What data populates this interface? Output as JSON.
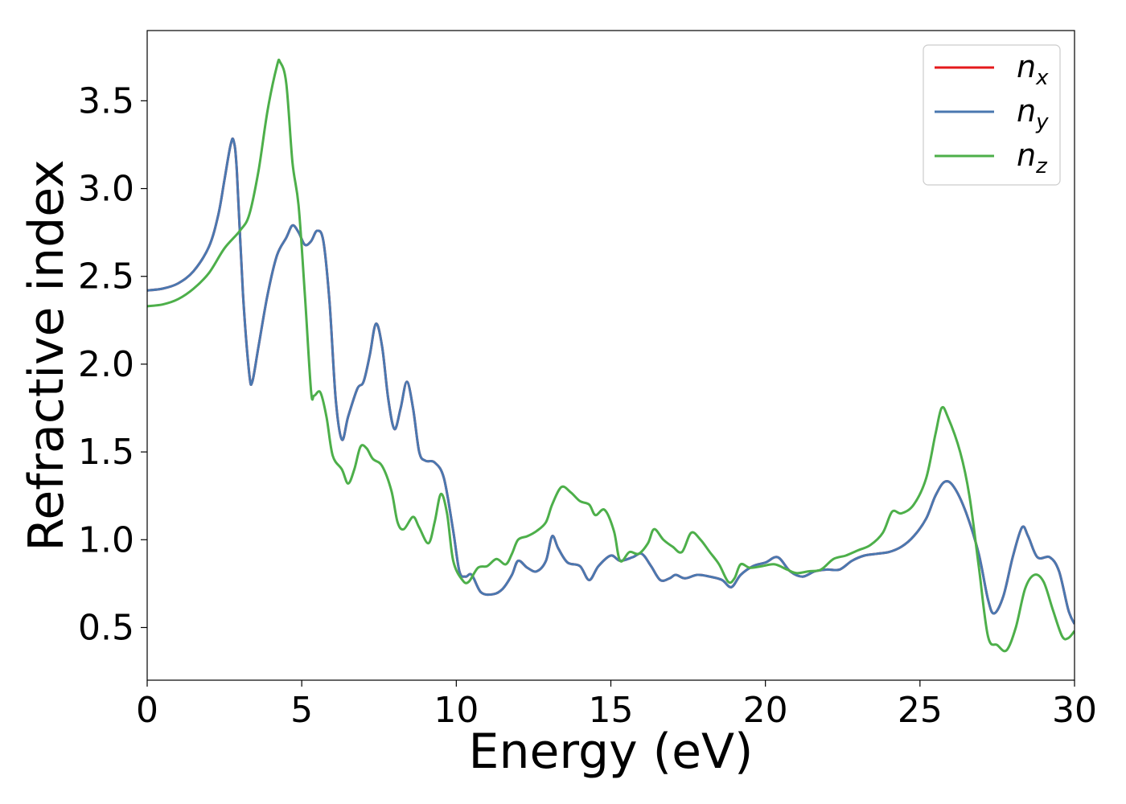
{
  "chart_data": {
    "type": "line",
    "xlabel": "Energy (eV)",
    "ylabel": "Refractive index",
    "xlim": [
      0,
      30
    ],
    "ylim": [
      0.2,
      3.9
    ],
    "xticks": [
      0,
      5,
      10,
      15,
      20,
      25,
      30
    ],
    "xtick_labels": [
      "0",
      "5",
      "10",
      "15",
      "20",
      "25",
      "30"
    ],
    "yticks": [
      0.5,
      1.0,
      1.5,
      2.0,
      2.5,
      3.0,
      3.5
    ],
    "ytick_labels": [
      "0.5",
      "1.0",
      "1.5",
      "2.0",
      "2.5",
      "3.0",
      "3.5"
    ],
    "grid": false,
    "legend_position": "top-right",
    "series": [
      {
        "name": "n",
        "subscript": "x",
        "color": "#e41a1c",
        "points": [
          [
            0,
            2.42
          ],
          [
            0.5,
            2.43
          ],
          [
            1,
            2.46
          ],
          [
            1.5,
            2.53
          ],
          [
            2,
            2.67
          ],
          [
            2.3,
            2.85
          ],
          [
            2.5,
            3.05
          ],
          [
            2.7,
            3.25
          ],
          [
            2.8,
            3.27
          ],
          [
            2.9,
            3.1
          ],
          [
            3.1,
            2.4
          ],
          [
            3.3,
            1.95
          ],
          [
            3.4,
            1.9
          ],
          [
            3.6,
            2.1
          ],
          [
            3.9,
            2.4
          ],
          [
            4.2,
            2.62
          ],
          [
            4.5,
            2.72
          ],
          [
            4.7,
            2.79
          ],
          [
            4.9,
            2.75
          ],
          [
            5.1,
            2.68
          ],
          [
            5.3,
            2.7
          ],
          [
            5.5,
            2.76
          ],
          [
            5.7,
            2.7
          ],
          [
            5.9,
            2.35
          ],
          [
            6.1,
            1.8
          ],
          [
            6.3,
            1.57
          ],
          [
            6.5,
            1.7
          ],
          [
            6.8,
            1.86
          ],
          [
            7,
            1.9
          ],
          [
            7.2,
            2.05
          ],
          [
            7.4,
            2.23
          ],
          [
            7.6,
            2.1
          ],
          [
            7.8,
            1.8
          ],
          [
            8.0,
            1.63
          ],
          [
            8.2,
            1.75
          ],
          [
            8.4,
            1.9
          ],
          [
            8.6,
            1.75
          ],
          [
            8.8,
            1.5
          ],
          [
            9.0,
            1.45
          ],
          [
            9.3,
            1.44
          ],
          [
            9.6,
            1.35
          ],
          [
            9.9,
            1.05
          ],
          [
            10.1,
            0.82
          ],
          [
            10.3,
            0.79
          ],
          [
            10.5,
            0.8
          ],
          [
            10.8,
            0.7
          ],
          [
            11.2,
            0.69
          ],
          [
            11.5,
            0.72
          ],
          [
            11.8,
            0.8
          ],
          [
            12,
            0.88
          ],
          [
            12.3,
            0.84
          ],
          [
            12.6,
            0.82
          ],
          [
            12.9,
            0.88
          ],
          [
            13.1,
            1.02
          ],
          [
            13.3,
            0.95
          ],
          [
            13.6,
            0.87
          ],
          [
            14,
            0.85
          ],
          [
            14.3,
            0.77
          ],
          [
            14.6,
            0.85
          ],
          [
            15,
            0.91
          ],
          [
            15.3,
            0.88
          ],
          [
            15.7,
            0.9
          ],
          [
            16,
            0.92
          ],
          [
            16.3,
            0.85
          ],
          [
            16.6,
            0.77
          ],
          [
            16.9,
            0.78
          ],
          [
            17.1,
            0.8
          ],
          [
            17.4,
            0.78
          ],
          [
            17.8,
            0.8
          ],
          [
            18.2,
            0.79
          ],
          [
            18.6,
            0.77
          ],
          [
            18.9,
            0.73
          ],
          [
            19.2,
            0.8
          ],
          [
            19.6,
            0.85
          ],
          [
            20,
            0.87
          ],
          [
            20.4,
            0.9
          ],
          [
            20.8,
            0.82
          ],
          [
            21.2,
            0.79
          ],
          [
            21.6,
            0.82
          ],
          [
            22,
            0.83
          ],
          [
            22.4,
            0.83
          ],
          [
            22.8,
            0.88
          ],
          [
            23.2,
            0.91
          ],
          [
            23.6,
            0.92
          ],
          [
            24,
            0.93
          ],
          [
            24.4,
            0.96
          ],
          [
            24.8,
            1.02
          ],
          [
            25.2,
            1.12
          ],
          [
            25.5,
            1.25
          ],
          [
            25.8,
            1.33
          ],
          [
            26.1,
            1.3
          ],
          [
            26.5,
            1.15
          ],
          [
            26.9,
            0.92
          ],
          [
            27.2,
            0.66
          ],
          [
            27.4,
            0.58
          ],
          [
            27.7,
            0.68
          ],
          [
            28,
            0.9
          ],
          [
            28.3,
            1.07
          ],
          [
            28.5,
            1.02
          ],
          [
            28.8,
            0.9
          ],
          [
            29.2,
            0.9
          ],
          [
            29.5,
            0.82
          ],
          [
            29.8,
            0.6
          ],
          [
            30,
            0.52
          ]
        ]
      },
      {
        "name": "n",
        "subscript": "y",
        "color": "#4a78b0",
        "points": [
          [
            0,
            2.42
          ],
          [
            0.5,
            2.43
          ],
          [
            1,
            2.46
          ],
          [
            1.5,
            2.53
          ],
          [
            2,
            2.67
          ],
          [
            2.3,
            2.85
          ],
          [
            2.5,
            3.05
          ],
          [
            2.7,
            3.25
          ],
          [
            2.8,
            3.27
          ],
          [
            2.9,
            3.1
          ],
          [
            3.1,
            2.4
          ],
          [
            3.3,
            1.95
          ],
          [
            3.4,
            1.9
          ],
          [
            3.6,
            2.1
          ],
          [
            3.9,
            2.4
          ],
          [
            4.2,
            2.62
          ],
          [
            4.5,
            2.72
          ],
          [
            4.7,
            2.79
          ],
          [
            4.9,
            2.75
          ],
          [
            5.1,
            2.68
          ],
          [
            5.3,
            2.7
          ],
          [
            5.5,
            2.76
          ],
          [
            5.7,
            2.7
          ],
          [
            5.9,
            2.35
          ],
          [
            6.1,
            1.8
          ],
          [
            6.3,
            1.57
          ],
          [
            6.5,
            1.7
          ],
          [
            6.8,
            1.86
          ],
          [
            7,
            1.9
          ],
          [
            7.2,
            2.05
          ],
          [
            7.4,
            2.23
          ],
          [
            7.6,
            2.1
          ],
          [
            7.8,
            1.8
          ],
          [
            8.0,
            1.63
          ],
          [
            8.2,
            1.75
          ],
          [
            8.4,
            1.9
          ],
          [
            8.6,
            1.75
          ],
          [
            8.8,
            1.5
          ],
          [
            9.0,
            1.45
          ],
          [
            9.3,
            1.44
          ],
          [
            9.6,
            1.35
          ],
          [
            9.9,
            1.05
          ],
          [
            10.1,
            0.82
          ],
          [
            10.3,
            0.79
          ],
          [
            10.5,
            0.8
          ],
          [
            10.8,
            0.7
          ],
          [
            11.2,
            0.69
          ],
          [
            11.5,
            0.72
          ],
          [
            11.8,
            0.8
          ],
          [
            12,
            0.88
          ],
          [
            12.3,
            0.84
          ],
          [
            12.6,
            0.82
          ],
          [
            12.9,
            0.88
          ],
          [
            13.1,
            1.02
          ],
          [
            13.3,
            0.95
          ],
          [
            13.6,
            0.87
          ],
          [
            14,
            0.85
          ],
          [
            14.3,
            0.77
          ],
          [
            14.6,
            0.85
          ],
          [
            15,
            0.91
          ],
          [
            15.3,
            0.88
          ],
          [
            15.7,
            0.9
          ],
          [
            16,
            0.92
          ],
          [
            16.3,
            0.85
          ],
          [
            16.6,
            0.77
          ],
          [
            16.9,
            0.78
          ],
          [
            17.1,
            0.8
          ],
          [
            17.4,
            0.78
          ],
          [
            17.8,
            0.8
          ],
          [
            18.2,
            0.79
          ],
          [
            18.6,
            0.77
          ],
          [
            18.9,
            0.73
          ],
          [
            19.2,
            0.8
          ],
          [
            19.6,
            0.85
          ],
          [
            20,
            0.87
          ],
          [
            20.4,
            0.9
          ],
          [
            20.8,
            0.82
          ],
          [
            21.2,
            0.79
          ],
          [
            21.6,
            0.82
          ],
          [
            22,
            0.83
          ],
          [
            22.4,
            0.83
          ],
          [
            22.8,
            0.88
          ],
          [
            23.2,
            0.91
          ],
          [
            23.6,
            0.92
          ],
          [
            24,
            0.93
          ],
          [
            24.4,
            0.96
          ],
          [
            24.8,
            1.02
          ],
          [
            25.2,
            1.12
          ],
          [
            25.5,
            1.25
          ],
          [
            25.8,
            1.33
          ],
          [
            26.1,
            1.3
          ],
          [
            26.5,
            1.15
          ],
          [
            26.9,
            0.92
          ],
          [
            27.2,
            0.66
          ],
          [
            27.4,
            0.58
          ],
          [
            27.7,
            0.68
          ],
          [
            28,
            0.9
          ],
          [
            28.3,
            1.07
          ],
          [
            28.5,
            1.02
          ],
          [
            28.8,
            0.9
          ],
          [
            29.2,
            0.9
          ],
          [
            29.5,
            0.82
          ],
          [
            29.8,
            0.6
          ],
          [
            30,
            0.52
          ]
        ]
      },
      {
        "name": "n",
        "subscript": "z",
        "color": "#4daf4a",
        "points": [
          [
            0,
            2.33
          ],
          [
            0.5,
            2.34
          ],
          [
            1,
            2.37
          ],
          [
            1.5,
            2.43
          ],
          [
            2,
            2.52
          ],
          [
            2.5,
            2.66
          ],
          [
            3.0,
            2.76
          ],
          [
            3.3,
            2.85
          ],
          [
            3.6,
            3.1
          ],
          [
            3.9,
            3.45
          ],
          [
            4.2,
            3.7
          ],
          [
            4.3,
            3.72
          ],
          [
            4.5,
            3.6
          ],
          [
            4.7,
            3.15
          ],
          [
            4.9,
            2.9
          ],
          [
            5.1,
            2.4
          ],
          [
            5.3,
            1.85
          ],
          [
            5.4,
            1.82
          ],
          [
            5.6,
            1.84
          ],
          [
            5.8,
            1.7
          ],
          [
            6.0,
            1.48
          ],
          [
            6.3,
            1.4
          ],
          [
            6.5,
            1.32
          ],
          [
            6.7,
            1.4
          ],
          [
            6.9,
            1.53
          ],
          [
            7.1,
            1.52
          ],
          [
            7.3,
            1.46
          ],
          [
            7.6,
            1.42
          ],
          [
            7.9,
            1.28
          ],
          [
            8.1,
            1.1
          ],
          [
            8.3,
            1.06
          ],
          [
            8.6,
            1.13
          ],
          [
            8.8,
            1.07
          ],
          [
            9.1,
            0.98
          ],
          [
            9.3,
            1.1
          ],
          [
            9.5,
            1.26
          ],
          [
            9.7,
            1.15
          ],
          [
            9.9,
            0.88
          ],
          [
            10.2,
            0.77
          ],
          [
            10.4,
            0.76
          ],
          [
            10.7,
            0.84
          ],
          [
            11,
            0.85
          ],
          [
            11.3,
            0.89
          ],
          [
            11.6,
            0.86
          ],
          [
            11.8,
            0.92
          ],
          [
            12,
            1.0
          ],
          [
            12.3,
            1.02
          ],
          [
            12.6,
            1.05
          ],
          [
            12.9,
            1.1
          ],
          [
            13.1,
            1.2
          ],
          [
            13.4,
            1.3
          ],
          [
            13.7,
            1.27
          ],
          [
            14,
            1.22
          ],
          [
            14.3,
            1.2
          ],
          [
            14.5,
            1.14
          ],
          [
            14.8,
            1.17
          ],
          [
            15.1,
            1.05
          ],
          [
            15.3,
            0.88
          ],
          [
            15.6,
            0.93
          ],
          [
            15.9,
            0.92
          ],
          [
            16.2,
            0.98
          ],
          [
            16.4,
            1.06
          ],
          [
            16.7,
            1.0
          ],
          [
            17,
            0.96
          ],
          [
            17.3,
            0.93
          ],
          [
            17.6,
            1.04
          ],
          [
            17.9,
            1.0
          ],
          [
            18.2,
            0.93
          ],
          [
            18.5,
            0.86
          ],
          [
            18.8,
            0.76
          ],
          [
            19.0,
            0.78
          ],
          [
            19.2,
            0.86
          ],
          [
            19.5,
            0.84
          ],
          [
            19.9,
            0.85
          ],
          [
            20.3,
            0.86
          ],
          [
            20.7,
            0.83
          ],
          [
            21,
            0.81
          ],
          [
            21.4,
            0.82
          ],
          [
            21.8,
            0.83
          ],
          [
            22.2,
            0.89
          ],
          [
            22.6,
            0.91
          ],
          [
            23,
            0.94
          ],
          [
            23.4,
            0.97
          ],
          [
            23.8,
            1.04
          ],
          [
            24.1,
            1.16
          ],
          [
            24.4,
            1.15
          ],
          [
            24.8,
            1.2
          ],
          [
            25.2,
            1.35
          ],
          [
            25.5,
            1.6
          ],
          [
            25.7,
            1.75
          ],
          [
            25.9,
            1.7
          ],
          [
            26.3,
            1.5
          ],
          [
            26.6,
            1.25
          ],
          [
            26.9,
            0.85
          ],
          [
            27.2,
            0.45
          ],
          [
            27.5,
            0.4
          ],
          [
            27.8,
            0.37
          ],
          [
            28.1,
            0.5
          ],
          [
            28.4,
            0.72
          ],
          [
            28.7,
            0.8
          ],
          [
            29,
            0.76
          ],
          [
            29.3,
            0.6
          ],
          [
            29.6,
            0.45
          ],
          [
            29.8,
            0.44
          ],
          [
            30,
            0.48
          ]
        ]
      }
    ]
  }
}
